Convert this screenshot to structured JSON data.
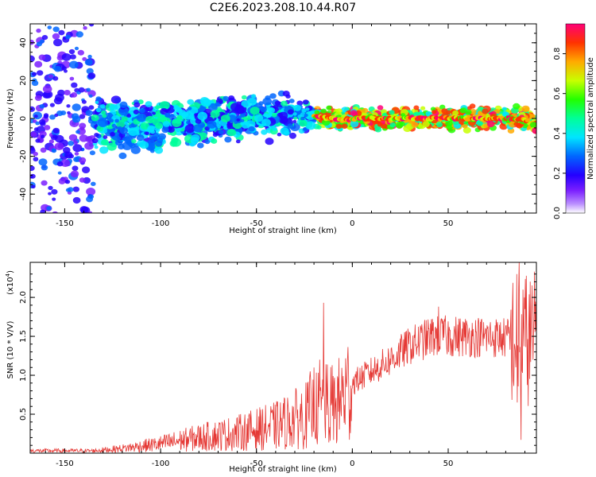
{
  "title": "C2E6.2023.208.10.44.R07",
  "chart_data": [
    {
      "type": "heatmap",
      "title": "C2E6.2023.208.10.44.R07",
      "xlabel": "Height of straight line (km)",
      "ylabel": "Frequency (Hz)",
      "xlim": [
        -168,
        96
      ],
      "ylim": [
        -50,
        50
      ],
      "xticks": [
        -150,
        -100,
        -50,
        0,
        50
      ],
      "yticks": [
        -40,
        -20,
        0,
        20,
        40
      ],
      "colorbar": {
        "label": "Normalized spectral amplitude",
        "range": [
          0,
          0.95
        ],
        "ticks": [
          "0.0",
          "0.2",
          "0.4",
          "0.6",
          "0.8"
        ],
        "tick_values": [
          0.0,
          0.2,
          0.4,
          0.6,
          0.8
        ]
      },
      "ridge_center_hz": [
        {
          "x": -168,
          "f": -2
        },
        {
          "x": -130,
          "f": -3
        },
        {
          "x": -100,
          "f": -3
        },
        {
          "x": -70,
          "f": -1
        },
        {
          "x": -50,
          "f": 1
        },
        {
          "x": -30,
          "f": 2
        },
        {
          "x": -18,
          "f": 1
        },
        {
          "x": -5,
          "f": -1
        },
        {
          "x": 0,
          "f": 0
        },
        {
          "x": 50,
          "f": 0
        },
        {
          "x": 85,
          "f": 0
        },
        {
          "x": 96,
          "f": -2
        }
      ]
    },
    {
      "type": "line",
      "xlabel": "Height of straight line (km)",
      "ylabel": "SNR (10 * V/V)",
      "scale_label": "(x10",
      "scale_exponent": "4",
      "scale_suffix": ")",
      "xlim": [
        -168,
        96
      ],
      "ylim": [
        0,
        2.45
      ],
      "xticks": [
        -150,
        -100,
        -50,
        0,
        50
      ],
      "yticks": [
        0.5,
        1.0,
        1.5,
        2.0
      ],
      "ytick_labels": [
        "0.5",
        "1.0",
        "1.5",
        "2.0"
      ],
      "color": "#e53935",
      "trend": [
        {
          "x": -168,
          "y": 0.03
        },
        {
          "x": -135,
          "y": 0.03
        },
        {
          "x": -120,
          "y": 0.06
        },
        {
          "x": -100,
          "y": 0.12
        },
        {
          "x": -80,
          "y": 0.2
        },
        {
          "x": -60,
          "y": 0.26
        },
        {
          "x": -40,
          "y": 0.35
        },
        {
          "x": -25,
          "y": 0.48
        },
        {
          "x": -15,
          "y": 0.6
        },
        {
          "x": -8,
          "y": 0.62
        },
        {
          "x": 0,
          "y": 0.9
        },
        {
          "x": 10,
          "y": 1.05
        },
        {
          "x": 20,
          "y": 1.2
        },
        {
          "x": 30,
          "y": 1.38
        },
        {
          "x": 42,
          "y": 1.5
        },
        {
          "x": 60,
          "y": 1.5
        },
        {
          "x": 80,
          "y": 1.48
        },
        {
          "x": 96,
          "y": 1.47
        }
      ],
      "spikes": [
        {
          "x": -15,
          "y": 1.93
        },
        {
          "x": -17,
          "y": 1.2
        },
        {
          "x": -20,
          "y": 1.1
        },
        {
          "x": -22,
          "y": 1.05
        },
        {
          "x": -12,
          "y": 0.28
        },
        {
          "x": 45,
          "y": 1.88
        },
        {
          "x": 48,
          "y": 1.72
        },
        {
          "x": 55,
          "y": 1.65
        },
        {
          "x": 87,
          "y": 2.45
        },
        {
          "x": 88,
          "y": 0.17
        },
        {
          "x": 86,
          "y": 0.65
        },
        {
          "x": 89,
          "y": 2.1
        },
        {
          "x": 90,
          "y": 1.85
        },
        {
          "x": 91,
          "y": 1.6
        },
        {
          "x": 83,
          "y": 1.1
        }
      ]
    }
  ]
}
